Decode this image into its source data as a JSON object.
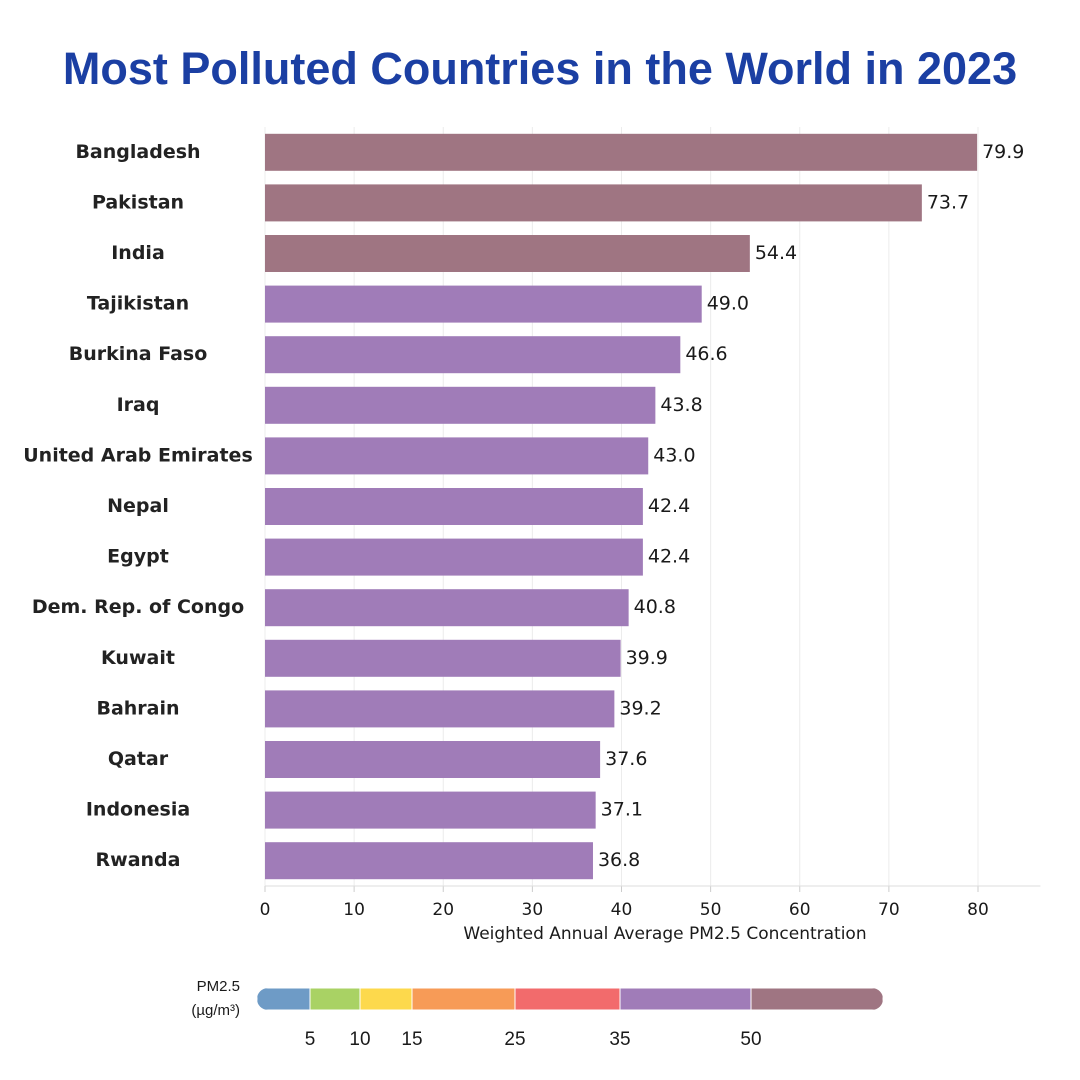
{
  "chart_data": {
    "type": "hbar",
    "title": "Most Polluted Countries in the World in 2023",
    "x_label": "Weighted Annual Average PM2.5 Concentration",
    "categories": [
      "Bangladesh",
      "Pakistan",
      "India",
      "Tajikistan",
      "Burkina Faso",
      "Iraq",
      "United Arab Emirates",
      "Nepal",
      "Egypt",
      "Dem. Rep. of Congo",
      "Kuwait",
      "Bahrain",
      "Qatar",
      "Indonesia",
      "Rwanda"
    ],
    "values": [
      79.9,
      73.7,
      54.4,
      49.0,
      46.6,
      43.8,
      43.0,
      42.4,
      42.4,
      40.8,
      39.9,
      39.2,
      37.6,
      37.1,
      36.8
    ],
    "value_labels": [
      "79.9",
      "73.7",
      "54.4",
      "49.0",
      "46.6",
      "43.8",
      "43.0",
      "42.4",
      "42.4",
      "40.8",
      "39.9",
      "39.2",
      "37.6",
      "37.1",
      "36.8"
    ],
    "xlim": [
      0,
      87
    ],
    "xticks": [
      0,
      10,
      20,
      30,
      40,
      50,
      60,
      70,
      80
    ],
    "grid": true,
    "legend": {
      "title": "PM2.5",
      "unit": "(µg/m³)",
      "breaks": [
        5,
        10,
        15,
        25,
        35,
        50
      ],
      "colors": [
        "#6e9bc6",
        "#a9d264",
        "#fdd94c",
        "#f79b57",
        "#f26b6c",
        "#a07cb8",
        "#9f7582"
      ]
    }
  }
}
